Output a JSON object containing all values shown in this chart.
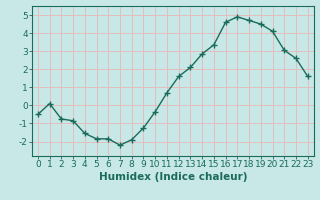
{
  "x": [
    0,
    1,
    2,
    3,
    4,
    5,
    6,
    7,
    8,
    9,
    10,
    11,
    12,
    13,
    14,
    15,
    16,
    17,
    18,
    19,
    20,
    21,
    22,
    23
  ],
  "y": [
    -0.5,
    0.1,
    -0.75,
    -0.85,
    -1.55,
    -1.85,
    -1.85,
    -2.2,
    -1.9,
    -1.25,
    -0.35,
    0.7,
    1.6,
    2.1,
    2.85,
    3.35,
    4.6,
    4.9,
    4.7,
    4.5,
    4.1,
    3.05,
    2.6,
    1.6
  ],
  "line_color": "#1a6b5a",
  "marker": "+",
  "marker_size": 4,
  "bg_color": "#c8e8e8",
  "grid_color": "#e8b8b8",
  "xlabel": "Humidex (Indice chaleur)",
  "xlim": [
    -0.5,
    23.5
  ],
  "ylim": [
    -2.8,
    5.5
  ],
  "xtick_labels": [
    "0",
    "1",
    "2",
    "3",
    "4",
    "5",
    "6",
    "7",
    "8",
    "9",
    "10",
    "11",
    "12",
    "13",
    "14",
    "15",
    "16",
    "17",
    "18",
    "19",
    "20",
    "21",
    "22",
    "23"
  ],
  "yticks": [
    -2,
    -1,
    0,
    1,
    2,
    3,
    4,
    5
  ],
  "font_color": "#1a6b5a",
  "font_size": 6.5,
  "xlabel_fontsize": 7.5,
  "line_width": 1.0,
  "spine_color": "#1a6b5a"
}
